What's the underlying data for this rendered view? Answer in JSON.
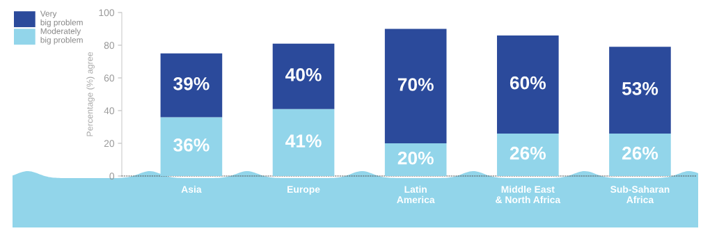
{
  "chart_data": {
    "type": "bar",
    "stacked": true,
    "ylabel": "Percentage (%) agree",
    "categories": [
      "Asia",
      "Europe",
      "Latin\nAmerica",
      "Middle East\n& North Africa",
      "Sub-Saharan\nAfrica"
    ],
    "series": [
      {
        "name": "Moderately\nbig problem",
        "color": "#92d5ea",
        "values": [
          36,
          41,
          20,
          26,
          26
        ],
        "value_labels": [
          "36%",
          "41%",
          "20%",
          "26%",
          "26%"
        ]
      },
      {
        "name": "Very\nbig problem",
        "color": "#2b4a9b",
        "values": [
          39,
          40,
          70,
          60,
          53
        ],
        "value_labels": [
          "39%",
          "40%",
          "70%",
          "60%",
          "53%"
        ]
      }
    ],
    "ylim": [
      0,
      100
    ],
    "yticks": [
      0,
      20,
      40,
      60,
      80,
      100
    ],
    "legend": "top left",
    "grid": false
  }
}
